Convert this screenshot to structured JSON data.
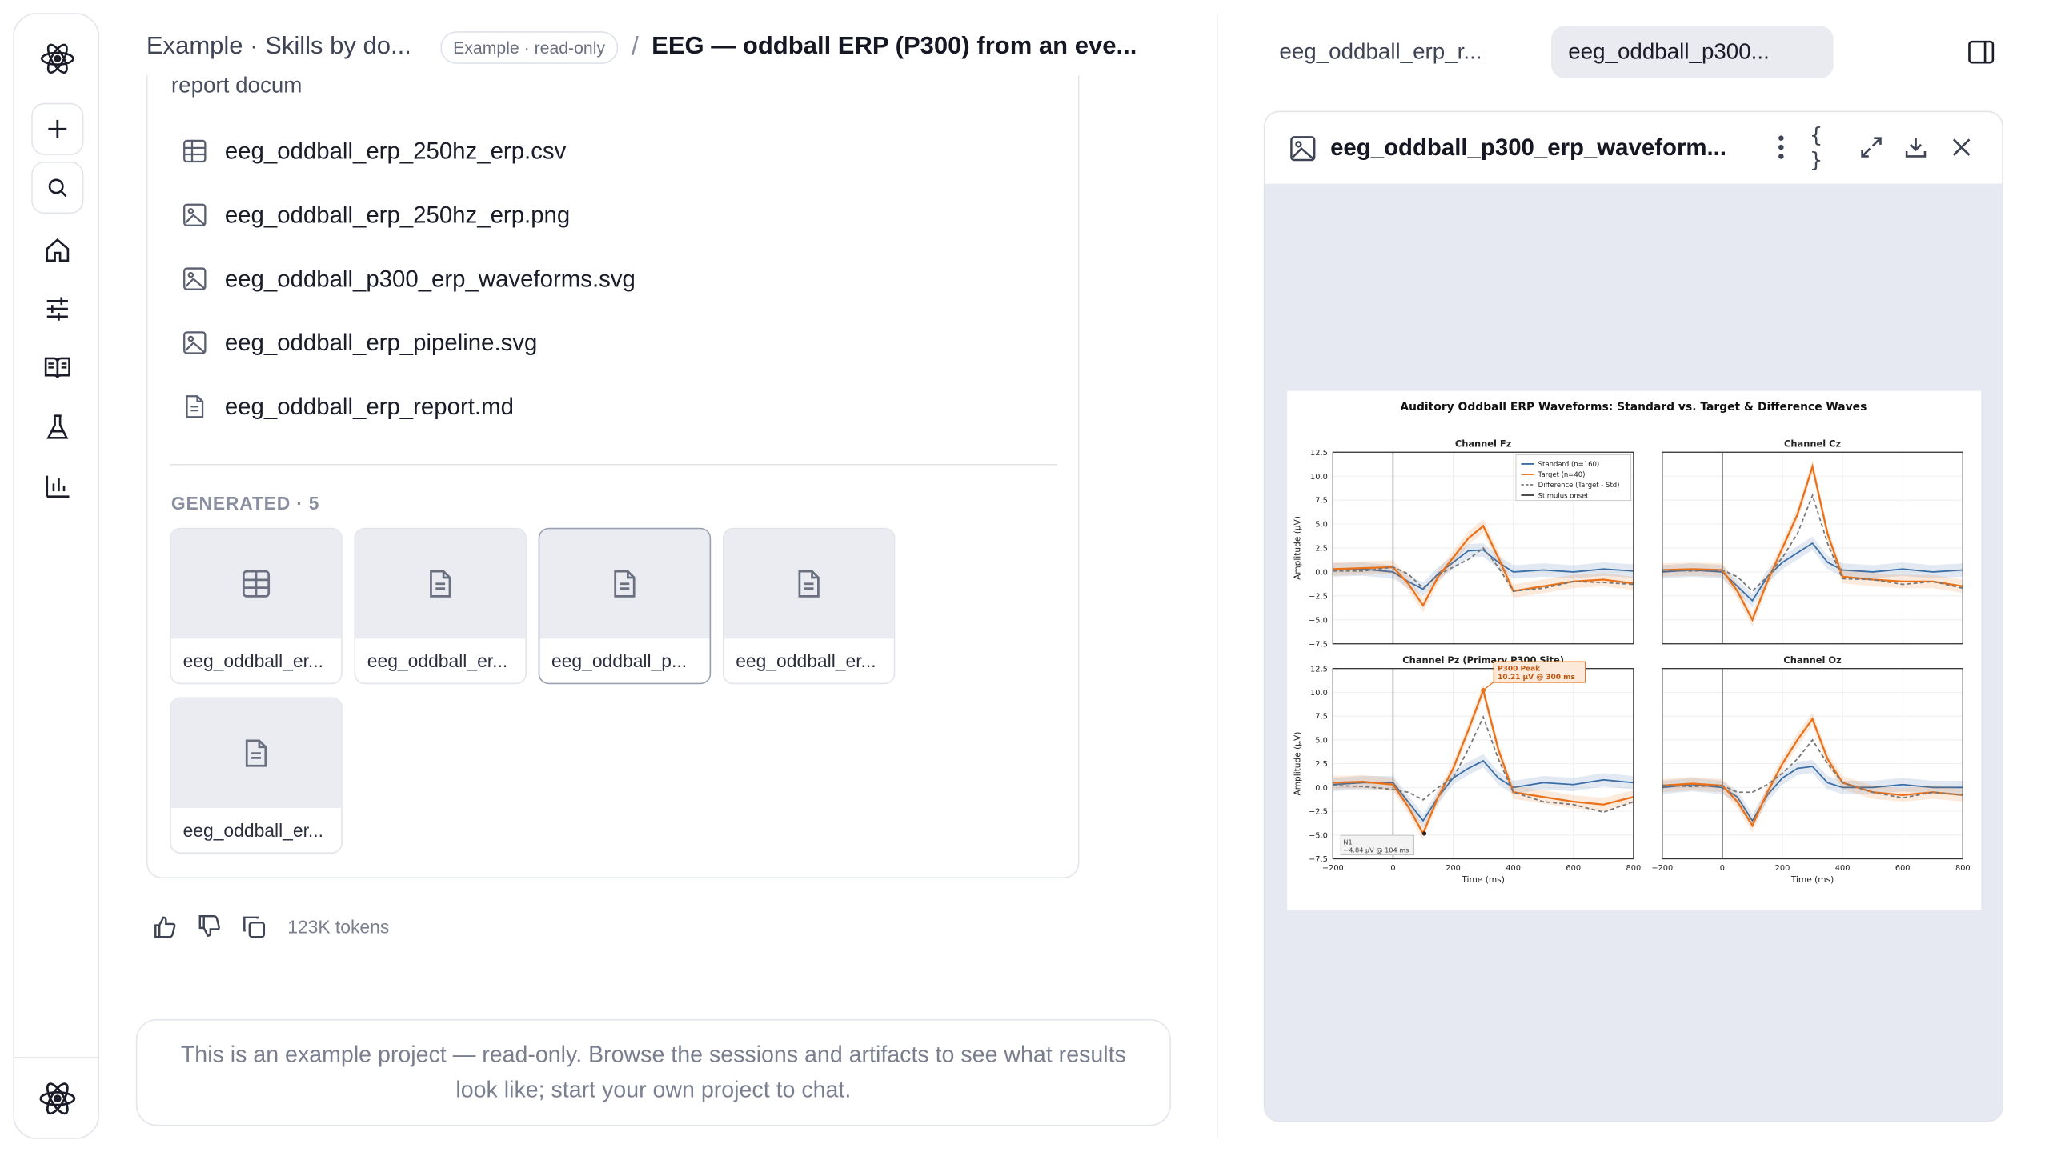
{
  "header": {
    "project": "Example · Skills by do...",
    "chip": "Example · read-only",
    "separator": "/",
    "title": "EEG — oddball ERP (P300) from an eve..."
  },
  "card": {
    "truncated_line": "report docum",
    "files": [
      {
        "name": "eeg_oddball_erp_250hz_erp.csv",
        "icon": "table-icon"
      },
      {
        "name": "eeg_oddball_erp_250hz_erp.png",
        "icon": "image-icon"
      },
      {
        "name": "eeg_oddball_p300_erp_waveforms.svg",
        "icon": "image-icon"
      },
      {
        "name": "eeg_oddball_erp_pipeline.svg",
        "icon": "image-icon"
      },
      {
        "name": "eeg_oddball_erp_report.md",
        "icon": "document-icon"
      }
    ],
    "generated_label": "GENERATED · 5",
    "tiles": [
      {
        "name": "eeg_oddball_er...",
        "icon": "table-icon"
      },
      {
        "name": "eeg_oddball_er...",
        "icon": "document-icon"
      },
      {
        "name": "eeg_oddball_p...",
        "icon": "document-icon",
        "selected": true
      },
      {
        "name": "eeg_oddball_er...",
        "icon": "document-icon"
      },
      {
        "name": "eeg_oddball_er...",
        "icon": "document-icon"
      }
    ]
  },
  "actions": {
    "tokens": "123K tokens"
  },
  "readonly_notice": "This is an example project — read-only. Browse the sessions and artifacts to see what results look like; start your own project to chat.",
  "right": {
    "tabs": [
      {
        "label": "eeg_oddball_erp_r..."
      },
      {
        "label": "eeg_oddball_p300...",
        "active": true
      }
    ],
    "viewer_title": "eeg_oddball_p300_erp_waveform...",
    "viewer_buttons": {
      "json": "{ }"
    }
  },
  "figure": {
    "title": "Auditory Oddball ERP Waveforms: Standard vs. Target & Difference Waves",
    "xlabel": "Time (ms)",
    "ylabel": "Amplitude (µV)",
    "xticks": [
      "−200",
      "0",
      "200",
      "400",
      "600",
      "800"
    ],
    "yticks": [
      "12.5",
      "10.0",
      "7.5",
      "5.0",
      "2.5",
      "0.0",
      "−2.5",
      "−5.0",
      "−7.5"
    ],
    "legend": [
      "Standard (n=160)",
      "Target (n=40)",
      "Difference (Target - Std)",
      "Stimulus onset"
    ],
    "annotation_p300": [
      "P300 Peak",
      "10.21 µV @ 300 ms"
    ],
    "annotation_n1": [
      "N1",
      "−4.84 µV @ 104 ms"
    ],
    "colors": {
      "standard": "#3a6ea5",
      "target": "#e8711a",
      "difference": "#777777"
    }
  },
  "chart_data": {
    "type": "line",
    "title": "Auditory Oddball ERP Waveforms: Standard vs. Target & Difference Waves",
    "xlabel": "Time (ms)",
    "ylabel": "Amplitude (µV)",
    "xlim": [
      -200,
      800
    ],
    "ylim": [
      -7.5,
      12.5
    ],
    "panels": [
      {
        "name": "Channel Fz",
        "x": [
          -200,
          -100,
          0,
          50,
          100,
          150,
          200,
          250,
          300,
          350,
          400,
          500,
          600,
          700,
          800
        ],
        "series": [
          {
            "name": "Standard (n=160)",
            "values": [
              0.2,
              0.3,
              0.0,
              -1.0,
              -1.8,
              -0.2,
              1.0,
              2.2,
              2.3,
              1.0,
              0.0,
              0.2,
              0.0,
              0.3,
              0.1
            ]
          },
          {
            "name": "Target (n=40)",
            "values": [
              0.3,
              0.4,
              0.5,
              -1.2,
              -3.5,
              -0.5,
              1.5,
              3.5,
              4.8,
              1.5,
              -2.0,
              -1.5,
              -1.0,
              -0.8,
              -1.2
            ]
          },
          {
            "name": "Difference (Target - Std)",
            "values": [
              0.1,
              0.1,
              0.5,
              -0.2,
              -1.7,
              -0.3,
              0.5,
              1.3,
              2.5,
              0.5,
              -2.0,
              -1.7,
              -1.0,
              -1.1,
              -1.3
            ]
          }
        ]
      },
      {
        "name": "Channel Cz",
        "x": [
          -200,
          -100,
          0,
          50,
          100,
          150,
          200,
          250,
          300,
          350,
          400,
          500,
          600,
          700,
          800
        ],
        "series": [
          {
            "name": "Standard (n=160)",
            "values": [
              0.0,
              0.2,
              0.0,
              -1.5,
              -3.0,
              -0.5,
              1.0,
              2.0,
              3.0,
              1.0,
              0.2,
              0.0,
              0.3,
              0.0,
              0.2
            ]
          },
          {
            "name": "Target (n=40)",
            "values": [
              0.2,
              0.3,
              0.2,
              -2.0,
              -5.0,
              -1.0,
              2.5,
              6.0,
              11.0,
              4.0,
              -0.5,
              -0.8,
              -1.0,
              -1.0,
              -1.5
            ]
          },
          {
            "name": "Difference (Target - Std)",
            "values": [
              0.2,
              0.1,
              0.2,
              -0.5,
              -2.0,
              -0.5,
              1.5,
              4.0,
              8.0,
              3.0,
              -0.7,
              -0.8,
              -1.3,
              -1.0,
              -1.7
            ]
          }
        ]
      },
      {
        "name": "Channel Pz (Primary P300 Site)",
        "x": [
          -200,
          -100,
          0,
          50,
          100,
          150,
          200,
          250,
          300,
          350,
          400,
          500,
          600,
          700,
          800
        ],
        "series": [
          {
            "name": "Standard (n=160)",
            "values": [
              0.3,
              0.5,
              0.5,
              -1.5,
              -3.5,
              -1.0,
              1.0,
              2.0,
              2.8,
              1.0,
              0.0,
              0.5,
              0.3,
              0.8,
              0.5
            ]
          },
          {
            "name": "Target (n=40)",
            "values": [
              0.5,
              0.6,
              0.3,
              -2.0,
              -4.84,
              -1.0,
              2.0,
              6.0,
              10.21,
              4.0,
              -0.5,
              -1.0,
              -1.5,
              -1.8,
              -1.0
            ]
          },
          {
            "name": "Difference (Target - Std)",
            "values": [
              0.2,
              0.1,
              -0.2,
              -0.5,
              -1.3,
              0.0,
              1.0,
              4.0,
              7.4,
              3.0,
              -0.5,
              -1.5,
              -1.8,
              -2.6,
              -1.5
            ]
          }
        ]
      },
      {
        "name": "Channel Oz",
        "x": [
          -200,
          -100,
          0,
          50,
          100,
          150,
          200,
          250,
          300,
          350,
          400,
          500,
          600,
          700,
          800
        ],
        "series": [
          {
            "name": "Standard (n=160)",
            "values": [
              0.0,
              0.3,
              0.0,
              -1.0,
              -3.5,
              -0.8,
              1.0,
              2.0,
              2.2,
              0.5,
              0.0,
              0.0,
              0.3,
              0.0,
              0.0
            ]
          },
          {
            "name": "Target (n=40)",
            "values": [
              0.2,
              0.4,
              0.2,
              -1.5,
              -4.0,
              -0.5,
              2.5,
              5.0,
              7.2,
              3.0,
              0.5,
              -0.5,
              -0.8,
              -0.5,
              -0.8
            ]
          },
          {
            "name": "Difference (Target - Std)",
            "values": [
              0.2,
              0.1,
              0.2,
              -0.5,
              -0.5,
              0.3,
              1.5,
              3.0,
              5.0,
              2.5,
              0.5,
              -0.5,
              -1.1,
              -0.5,
              -0.8
            ]
          }
        ]
      }
    ]
  }
}
